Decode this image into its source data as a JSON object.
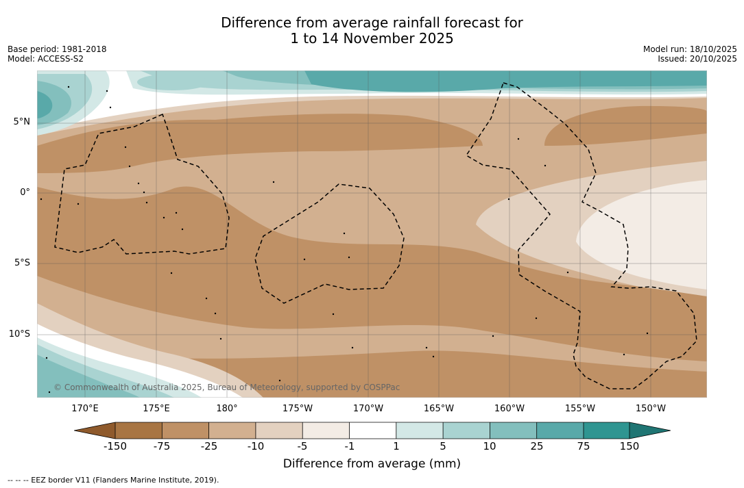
{
  "title": {
    "line1": "Difference from average rainfall forecast for",
    "line2": "1 to 14 November 2025"
  },
  "meta_left": {
    "base_period": "Base period: 1981-2018",
    "model": "Model: ACCESS-S2"
  },
  "meta_right": {
    "model_run": "Model run: 18/10/2025",
    "issued": "Issued: 20/10/2025"
  },
  "map": {
    "copyright": "© Commonwealth of Australia 2025, Bureau of Meteorology, supported by COSPPac",
    "lat_labels": [
      "5°N",
      "0°",
      "5°S",
      "10°S"
    ],
    "lon_labels": [
      "170°E",
      "175°E",
      "180°",
      "175°W",
      "170°W",
      "165°W",
      "160°W",
      "155°W",
      "150°W"
    ]
  },
  "colorbar": {
    "ticks": [
      "-150",
      "-75",
      "-25",
      "-10",
      "-5",
      "-1",
      "1",
      "5",
      "10",
      "25",
      "75",
      "150"
    ],
    "colors": {
      "under": "#8f5a2c",
      "lt150": "#a87543",
      "lt75": "#bf9166",
      "lt25": "#d2b090",
      "lt10": "#e3d1c0",
      "lt5": "#f3ece5",
      "mid": "#ffffff",
      "gt5": "#d3e8e6",
      "gt10": "#a9d3d1",
      "gt25": "#83bfbd",
      "gt75": "#59a9a9",
      "gt150": "#2f9591",
      "over": "#1f7573"
    },
    "title": "Difference from average (mm)"
  },
  "footer": "-- -- -- EEZ border V11 (Flanders Marine Institute, 2019)."
}
